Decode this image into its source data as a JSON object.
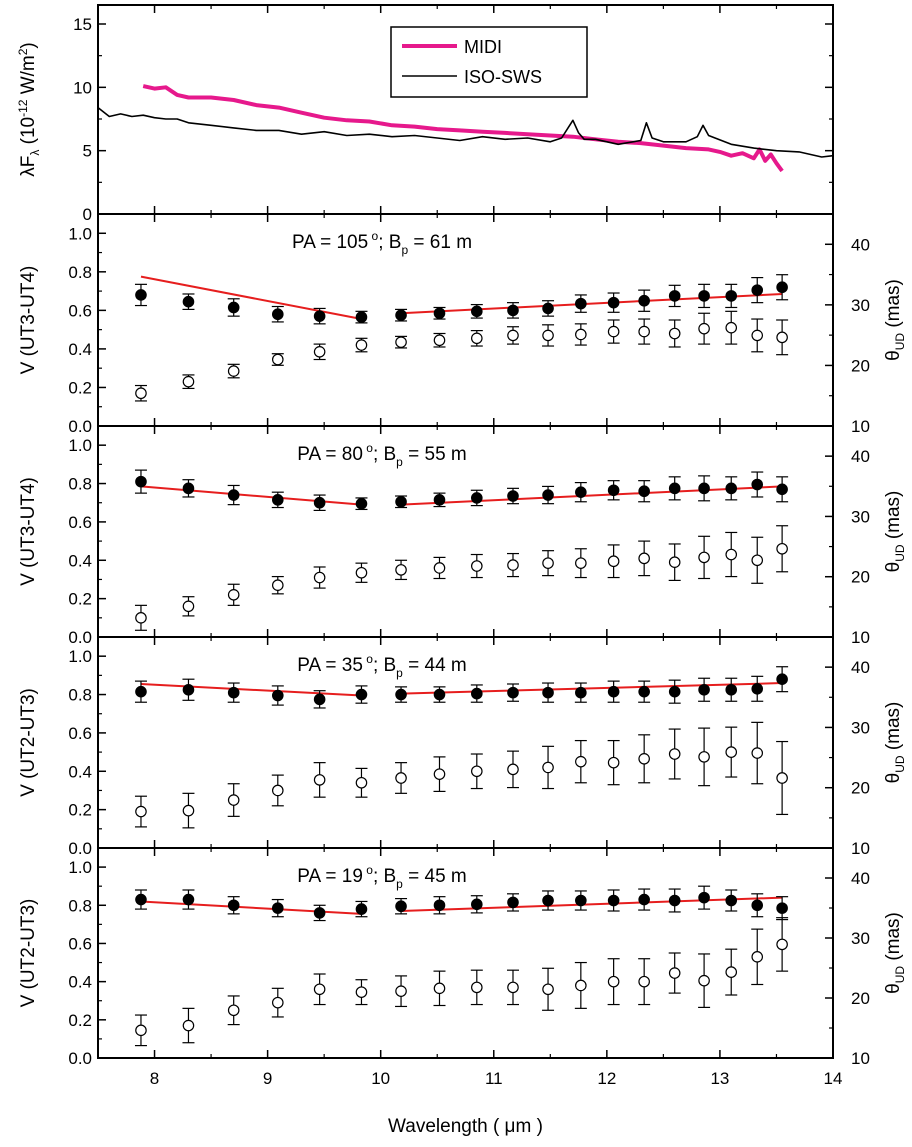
{
  "chart_data": [
    {
      "type": "line",
      "ylabel": "λFλ (10-12 W/m2)",
      "ylabel_parts": {
        "main": "λF",
        "sub": "λ",
        "unit_open": " (10",
        "exp": "-12",
        "unit_mid": " W/m",
        "exp2": "2",
        "unit_close": ")"
      },
      "xlim": [
        7.5,
        14
      ],
      "ylim": [
        0,
        16.5
      ],
      "yticks": [
        "0",
        "5",
        "10",
        "15"
      ],
      "legend": [
        "MIDI",
        "ISO-SWS"
      ],
      "legend_position": "top-center",
      "series": [
        {
          "name": "MIDI",
          "color": "#e6198c",
          "x": [
            7.9,
            8.0,
            8.1,
            8.2,
            8.3,
            8.5,
            8.7,
            8.9,
            9.1,
            9.3,
            9.5,
            9.7,
            9.9,
            10.1,
            10.3,
            10.5,
            10.7,
            10.9,
            11.1,
            11.3,
            11.5,
            11.7,
            11.9,
            12.1,
            12.3,
            12.5,
            12.7,
            12.9,
            13.0,
            13.1,
            13.2,
            13.3,
            13.35,
            13.4,
            13.45,
            13.5,
            13.55
          ],
          "y": [
            10.1,
            9.9,
            10.0,
            9.4,
            9.2,
            9.2,
            9.0,
            8.6,
            8.4,
            8.0,
            7.6,
            7.4,
            7.3,
            7.0,
            6.9,
            6.7,
            6.6,
            6.5,
            6.4,
            6.3,
            6.2,
            6.1,
            5.9,
            5.7,
            5.6,
            5.4,
            5.2,
            5.1,
            4.9,
            4.6,
            4.8,
            4.4,
            5.1,
            4.2,
            4.7,
            4.0,
            3.4
          ]
        },
        {
          "name": "ISO-SWS",
          "color": "#000000",
          "x": [
            7.5,
            7.6,
            7.7,
            7.8,
            7.9,
            8.0,
            8.1,
            8.2,
            8.3,
            8.5,
            8.7,
            8.9,
            9.1,
            9.3,
            9.5,
            9.7,
            9.9,
            10.1,
            10.3,
            10.5,
            10.7,
            10.9,
            11.1,
            11.3,
            11.5,
            11.6,
            11.7,
            11.75,
            11.8,
            11.9,
            12.1,
            12.3,
            12.35,
            12.4,
            12.5,
            12.7,
            12.8,
            12.85,
            12.9,
            13.1,
            13.3,
            13.5,
            13.7,
            13.9,
            14.0
          ],
          "y": [
            8.4,
            7.7,
            7.9,
            7.7,
            7.8,
            7.6,
            7.5,
            7.5,
            7.2,
            7.0,
            6.8,
            6.6,
            6.6,
            6.3,
            6.5,
            6.2,
            6.3,
            6.1,
            6.2,
            6.0,
            5.8,
            6.1,
            5.9,
            6.0,
            5.7,
            6.0,
            7.4,
            6.4,
            5.9,
            5.9,
            5.5,
            5.8,
            7.2,
            6.0,
            5.7,
            5.7,
            6.1,
            7.0,
            6.2,
            5.5,
            5.2,
            5.0,
            4.9,
            4.5,
            4.6
          ]
        }
      ]
    },
    {
      "type": "scatter",
      "ylabel": "V (UT3-UT4)",
      "y2label_parts": {
        "main": "θ",
        "sub": "UD",
        "unit": " (mas)"
      },
      "title_parts": {
        "pa": "PA = 105",
        "deg": "o",
        "mid": "; B",
        "sub": "p",
        "rest": " = 61 m"
      },
      "xlim": [
        7.5,
        14
      ],
      "ylim": [
        0.0,
        1.1
      ],
      "yticks": [
        "0.0",
        "0.2",
        "0.4",
        "0.6",
        "0.8",
        "1.0"
      ],
      "y2lim": [
        10,
        45
      ],
      "y2ticks": [
        "10",
        "20",
        "30",
        "40"
      ],
      "x": [
        7.88,
        8.3,
        8.7,
        9.09,
        9.46,
        9.83,
        10.18,
        10.52,
        10.85,
        11.17,
        11.48,
        11.77,
        12.06,
        12.33,
        12.6,
        12.86,
        13.1,
        13.33,
        13.55
      ],
      "series": [
        {
          "name": "V",
          "marker": "filled",
          "y": [
            0.68,
            0.645,
            0.615,
            0.58,
            0.57,
            0.565,
            0.575,
            0.585,
            0.595,
            0.6,
            0.61,
            0.635,
            0.64,
            0.65,
            0.675,
            0.675,
            0.675,
            0.705,
            0.72
          ],
          "err": [
            0.055,
            0.04,
            0.045,
            0.04,
            0.04,
            0.03,
            0.03,
            0.03,
            0.035,
            0.04,
            0.04,
            0.045,
            0.05,
            0.055,
            0.055,
            0.06,
            0.06,
            0.065,
            0.065
          ]
        },
        {
          "name": "θUD",
          "marker": "open",
          "y": [
            0.17,
            0.23,
            0.285,
            0.345,
            0.385,
            0.42,
            0.435,
            0.445,
            0.455,
            0.47,
            0.47,
            0.475,
            0.49,
            0.49,
            0.48,
            0.505,
            0.51,
            0.47,
            0.46
          ],
          "err": [
            0.04,
            0.035,
            0.035,
            0.03,
            0.04,
            0.035,
            0.03,
            0.035,
            0.04,
            0.045,
            0.055,
            0.055,
            0.06,
            0.065,
            0.07,
            0.08,
            0.085,
            0.085,
            0.09
          ]
        }
      ],
      "model": {
        "color": "#e61e1e",
        "segments": [
          [
            [
              7.88,
              0.775
            ],
            [
              9.83,
              0.555
            ]
          ],
          [
            [
              10.18,
              0.585
            ],
            [
              13.55,
              0.685
            ]
          ]
        ]
      }
    },
    {
      "type": "scatter",
      "ylabel": "V (UT3-UT4)",
      "y2label_parts": {
        "main": "θ",
        "sub": "UD",
        "unit": " (mas)"
      },
      "title_parts": {
        "pa": "PA = 80",
        "deg": "o",
        "mid": "; B",
        "sub": "p",
        "rest": " = 55 m"
      },
      "xlim": [
        7.5,
        14
      ],
      "ylim": [
        0.0,
        1.1
      ],
      "yticks": [
        "0.0",
        "0.2",
        "0.4",
        "0.6",
        "0.8",
        "1.0"
      ],
      "y2lim": [
        10,
        45
      ],
      "y2ticks": [
        "10",
        "20",
        "30",
        "40"
      ],
      "x": [
        7.88,
        8.3,
        8.7,
        9.09,
        9.46,
        9.83,
        10.18,
        10.52,
        10.85,
        11.17,
        11.48,
        11.77,
        12.06,
        12.33,
        12.6,
        12.86,
        13.1,
        13.33,
        13.55
      ],
      "series": [
        {
          "name": "V",
          "marker": "filled",
          "y": [
            0.81,
            0.775,
            0.74,
            0.715,
            0.7,
            0.695,
            0.705,
            0.715,
            0.725,
            0.735,
            0.74,
            0.755,
            0.765,
            0.76,
            0.775,
            0.775,
            0.775,
            0.795,
            0.77
          ],
          "err": [
            0.06,
            0.045,
            0.05,
            0.04,
            0.04,
            0.03,
            0.03,
            0.035,
            0.04,
            0.04,
            0.045,
            0.05,
            0.05,
            0.055,
            0.06,
            0.065,
            0.06,
            0.065,
            0.065
          ]
        },
        {
          "name": "θUD",
          "marker": "open",
          "y": [
            0.1,
            0.16,
            0.22,
            0.27,
            0.31,
            0.335,
            0.35,
            0.36,
            0.37,
            0.375,
            0.385,
            0.385,
            0.395,
            0.41,
            0.39,
            0.415,
            0.43,
            0.4,
            0.46
          ],
          "err": [
            0.065,
            0.05,
            0.055,
            0.045,
            0.055,
            0.05,
            0.05,
            0.055,
            0.06,
            0.06,
            0.065,
            0.075,
            0.085,
            0.09,
            0.095,
            0.11,
            0.115,
            0.12,
            0.12
          ]
        }
      ],
      "model": {
        "color": "#e61e1e",
        "segments": [
          [
            [
              7.88,
              0.785
            ],
            [
              9.83,
              0.69
            ]
          ],
          [
            [
              10.18,
              0.69
            ],
            [
              13.55,
              0.785
            ]
          ]
        ]
      }
    },
    {
      "type": "scatter",
      "ylabel": "V (UT2-UT3)",
      "y2label_parts": {
        "main": "θ",
        "sub": "UD",
        "unit": " (mas)"
      },
      "title_parts": {
        "pa": "PA = 35",
        "deg": "o",
        "mid": "; B",
        "sub": "p",
        "rest": " = 44 m"
      },
      "xlim": [
        7.5,
        14
      ],
      "ylim": [
        0.0,
        1.1
      ],
      "yticks": [
        "0.0",
        "0.2",
        "0.4",
        "0.6",
        "0.8",
        "1.0"
      ],
      "y2lim": [
        10,
        45
      ],
      "y2ticks": [
        "10",
        "20",
        "30",
        "40"
      ],
      "x": [
        7.88,
        8.3,
        8.7,
        9.09,
        9.46,
        9.83,
        10.18,
        10.52,
        10.85,
        11.17,
        11.48,
        11.77,
        12.06,
        12.33,
        12.6,
        12.86,
        13.1,
        13.33,
        13.55
      ],
      "series": [
        {
          "name": "V",
          "marker": "filled",
          "y": [
            0.815,
            0.825,
            0.81,
            0.795,
            0.775,
            0.8,
            0.8,
            0.8,
            0.805,
            0.81,
            0.81,
            0.81,
            0.815,
            0.815,
            0.815,
            0.825,
            0.825,
            0.83,
            0.88
          ],
          "err": [
            0.055,
            0.055,
            0.05,
            0.05,
            0.045,
            0.045,
            0.04,
            0.04,
            0.045,
            0.045,
            0.05,
            0.05,
            0.055,
            0.055,
            0.06,
            0.06,
            0.06,
            0.065,
            0.065
          ]
        },
        {
          "name": "θUD",
          "marker": "open",
          "y": [
            0.19,
            0.195,
            0.25,
            0.3,
            0.355,
            0.34,
            0.365,
            0.385,
            0.4,
            0.41,
            0.42,
            0.45,
            0.445,
            0.465,
            0.49,
            0.475,
            0.5,
            0.495,
            0.365
          ],
          "err": [
            0.08,
            0.09,
            0.085,
            0.08,
            0.09,
            0.075,
            0.08,
            0.09,
            0.09,
            0.095,
            0.11,
            0.11,
            0.115,
            0.125,
            0.13,
            0.15,
            0.13,
            0.16,
            0.19
          ]
        }
      ],
      "model": {
        "color": "#e61e1e",
        "segments": [
          [
            [
              7.88,
              0.855
            ],
            [
              9.83,
              0.795
            ]
          ],
          [
            [
              10.18,
              0.805
            ],
            [
              13.55,
              0.86
            ]
          ]
        ]
      }
    },
    {
      "type": "scatter",
      "ylabel": "V (UT2-UT3)",
      "y2label_parts": {
        "main": "θ",
        "sub": "UD",
        "unit": " (mas)"
      },
      "title_parts": {
        "pa": "PA = 19",
        "deg": "o",
        "mid": "; B",
        "sub": "p",
        "rest": " = 45 m"
      },
      "xlabel": "Wavelength ( μm )",
      "xlim": [
        7.5,
        14
      ],
      "xticks": [
        "8",
        "9",
        "10",
        "11",
        "12",
        "13",
        "14"
      ],
      "ylim": [
        0.0,
        1.1
      ],
      "yticks": [
        "0.0",
        "0.2",
        "0.4",
        "0.6",
        "0.8",
        "1.0"
      ],
      "y2lim": [
        10,
        45
      ],
      "y2ticks": [
        "10",
        "20",
        "30",
        "40"
      ],
      "x": [
        7.88,
        8.3,
        8.7,
        9.09,
        9.46,
        9.83,
        10.18,
        10.52,
        10.85,
        11.17,
        11.48,
        11.77,
        12.06,
        12.33,
        12.6,
        12.86,
        13.1,
        13.33,
        13.55
      ],
      "series": [
        {
          "name": "V",
          "marker": "filled",
          "y": [
            0.83,
            0.83,
            0.8,
            0.785,
            0.76,
            0.78,
            0.795,
            0.8,
            0.805,
            0.815,
            0.825,
            0.825,
            0.825,
            0.83,
            0.825,
            0.84,
            0.825,
            0.8,
            0.785
          ],
          "err": [
            0.05,
            0.05,
            0.045,
            0.045,
            0.04,
            0.04,
            0.04,
            0.045,
            0.045,
            0.045,
            0.05,
            0.05,
            0.055,
            0.055,
            0.06,
            0.06,
            0.055,
            0.06,
            0.06
          ]
        },
        {
          "name": "θUD",
          "marker": "open",
          "y": [
            0.145,
            0.17,
            0.25,
            0.29,
            0.36,
            0.345,
            0.35,
            0.365,
            0.37,
            0.37,
            0.36,
            0.38,
            0.4,
            0.4,
            0.445,
            0.405,
            0.45,
            0.53,
            0.595
          ],
          "err": [
            0.08,
            0.09,
            0.075,
            0.075,
            0.08,
            0.065,
            0.08,
            0.09,
            0.09,
            0.09,
            0.11,
            0.12,
            0.12,
            0.12,
            0.105,
            0.14,
            0.12,
            0.145,
            0.14
          ]
        }
      ],
      "model": {
        "color": "#e61e1e",
        "segments": [
          [
            [
              7.88,
              0.82
            ],
            [
              9.83,
              0.755
            ]
          ],
          [
            [
              10.18,
              0.77
            ],
            [
              13.55,
              0.84
            ]
          ]
        ]
      }
    }
  ]
}
